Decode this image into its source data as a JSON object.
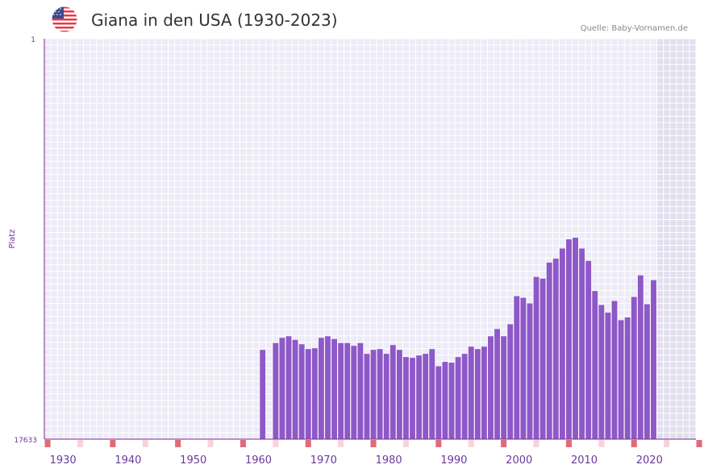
{
  "title": "Giana in den USA (1930-2023)",
  "source": "Quelle: Baby-Vornamen.de",
  "icon": "us-flag-icon",
  "colors": {
    "bar": "#8e58c8",
    "plot_bg": "#eeebf8",
    "grid": "#ffffff",
    "future_bg": "#e2dfee",
    "axis": "#7a2a8a",
    "tick_label": "#6a3a9a",
    "decade_marker": "#e06b78",
    "half_decade_marker": "#f7d4da"
  },
  "chart_data": {
    "type": "bar",
    "title": "Giana in den USA (1930-2023)",
    "xlabel": "",
    "ylabel": "Platz",
    "ylim_labels": [
      "1",
      "17633"
    ],
    "x_range": [
      1929,
      2029
    ],
    "future_from": 2023,
    "x_ticks": [
      1930,
      1940,
      1950,
      1960,
      1970,
      1980,
      1990,
      2000,
      2010,
      2020
    ],
    "decade_markers": [
      1929,
      1939,
      1949,
      1959,
      1969,
      1979,
      1989,
      1999,
      2009,
      2019,
      2029
    ],
    "half_decade_markers": [
      1934,
      1944,
      1954,
      1964,
      1974,
      1984,
      1994,
      2004,
      2014,
      2024
    ],
    "value_unit": "relative bar height (0 = rank 17633, 100 = rank 1)",
    "years": [
      1962,
      1964,
      1965,
      1966,
      1967,
      1968,
      1969,
      1970,
      1971,
      1972,
      1973,
      1974,
      1975,
      1976,
      1977,
      1978,
      1979,
      1980,
      1981,
      1982,
      1983,
      1984,
      1985,
      1986,
      1987,
      1988,
      1989,
      1990,
      1991,
      1992,
      1993,
      1994,
      1995,
      1996,
      1997,
      1998,
      1999,
      2000,
      2001,
      2002,
      2003,
      2004,
      2005,
      2006,
      2007,
      2008,
      2009,
      2010,
      2011,
      2012,
      2013,
      2014,
      2015,
      2016,
      2017,
      2018,
      2019,
      2020,
      2021,
      2022
    ],
    "values": [
      22.3,
      24.0,
      25.3,
      25.7,
      24.8,
      23.7,
      22.5,
      22.7,
      25.3,
      25.7,
      25.0,
      24.0,
      24.0,
      23.3,
      24.0,
      21.3,
      22.3,
      22.5,
      21.3,
      23.5,
      22.3,
      20.5,
      20.3,
      20.9,
      21.3,
      22.5,
      18.2,
      19.3,
      19.1,
      20.5,
      21.3,
      23.1,
      22.5,
      23.1,
      25.7,
      27.5,
      25.7,
      28.7,
      35.7,
      35.3,
      33.9,
      40.5,
      40.1,
      44.1,
      45.1,
      47.6,
      49.9,
      50.3,
      47.6,
      44.5,
      37.0,
      33.5,
      31.6,
      34.5,
      29.7,
      30.4,
      35.5,
      40.9,
      33.7,
      39.7
    ]
  }
}
